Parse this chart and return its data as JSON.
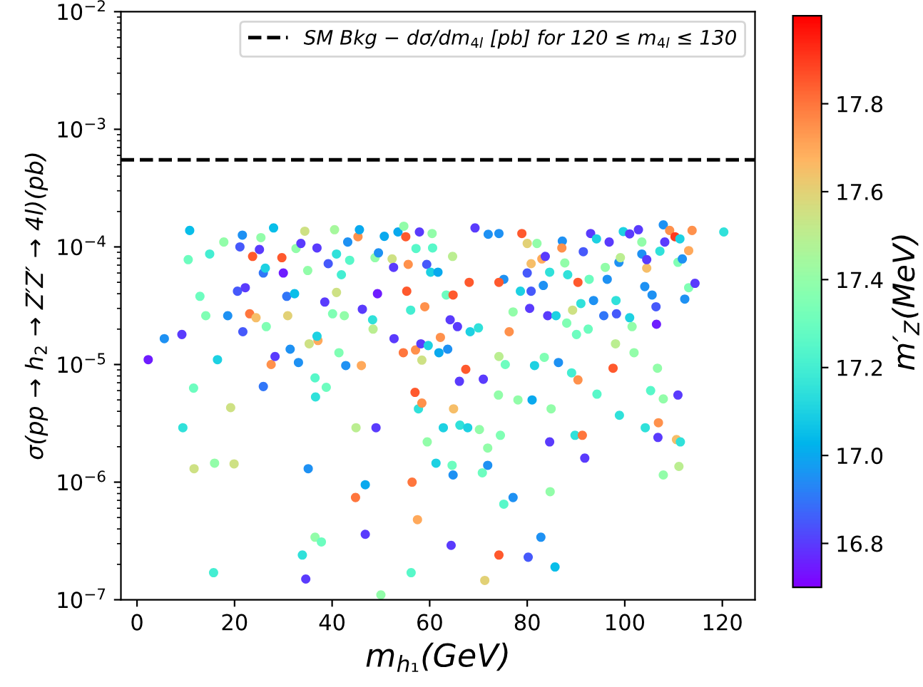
{
  "chart_data": {
    "type": "scatter",
    "xlabel": "m$_{h₁}$(GeV)",
    "ylabel": "σ(pp → h$_{2}$ → Z′Z′ → 4l)(pb)",
    "clabel": "m′$_{Z}$(MeV)",
    "log": "y",
    "xlim": [
      -3.3,
      126.7
    ],
    "xticks": [
      0,
      20,
      40,
      60,
      80,
      100,
      120
    ],
    "ylim": [
      1e-07,
      0.01
    ],
    "yticks": [
      {
        "value": 1e-07,
        "label": "10$^{−7}$"
      },
      {
        "value": 1e-06,
        "label": "10$^{−6}$"
      },
      {
        "value": 1e-05,
        "label": "10$^{−5}$"
      },
      {
        "value": 0.0001,
        "label": "10$^{−4}$"
      },
      {
        "value": 0.001,
        "label": "10$^{−3}$"
      },
      {
        "value": 0.01,
        "label": "10$^{−2}$"
      }
    ],
    "clim": [
      16.7,
      18.0
    ],
    "cticks": [
      16.8,
      {
        "value": 17,
        "label": "17.0"
      },
      17.2,
      17.4,
      17.6,
      17.8
    ],
    "marker": "circle",
    "grid": false,
    "legend": "top right",
    "ref_lines": [
      {
        "axis": "y",
        "value": 0.00055,
        "label": "SM Bkg − dσ/dm$_{4l}$ [pb] for 120 ≤ m$_{4l}$ ≤ 130",
        "color": "#000000",
        "line_style": "dashed"
      }
    ],
    "series": [
      {
        "x": [
          2.3,
          5.6,
          9.2,
          9.4,
          10.8,
          10.5,
          11.6,
          11.7,
          12.9,
          14.1,
          14.9,
          15.7,
          15.9,
          16.5,
          17.8,
          18.6,
          19.2,
          19.9,
          20.6,
          21.1,
          21.6,
          21.7,
          22.2,
          23.1,
          23.7,
          24.4,
          25.1,
          25.4,
          25.9,
          25.9,
          26.3,
          26.5,
          27.5,
          28.0,
          28.3,
          29.7,
          30.0,
          30.7,
          30.9,
          31.4,
          32.3,
          32.6,
          33.1,
          33.6,
          34.4,
          33.9,
          34.6,
          35.1,
          35.0,
          35.3,
          36.5,
          37.8,
          36.6,
          36.5,
          37.1,
          36.9,
          36.9,
          38.5,
          38.8,
          39.2,
          40.1,
          40.5,
          40.9,
          41.4,
          40.9,
          41.9,
          42.5,
          42.8,
          43.2,
          43.6,
          44.9,
          44.8,
          45.3,
          45.6,
          46.0,
          46.2,
          46.8,
          46.8,
          48.3,
          48.4,
          49.3,
          49.0,
          48.8,
          49.5,
          50.0,
          50.7,
          52.3,
          52.6,
          52.7,
          53.5,
          54.7,
          55.1,
          55.3,
          55.6,
          56.1,
          54.6,
          56.2,
          56.4,
          57.0,
          57.1,
          57.2,
          57.5,
          57.7,
          57.9,
          58.2,
          58.4,
          58.4,
          59.0,
          59.5,
          59.4,
          59.7,
          60.2,
          60.5,
          60.6,
          61.3,
          61.7,
          61.9,
          62.2,
          62.8,
          63.4,
          63.7,
          64.2,
          64.4,
          64.6,
          64.7,
          64.8,
          64.9,
          64.8,
          65.7,
          66.1,
          66.2,
          67.4,
          68.1,
          69.3,
          67.8,
          68.3,
          70.0,
          70.2,
          71.0,
          71.3,
          71.9,
          71.9,
          70.8,
          74.2,
          74.1,
          74.5,
          74.2,
          72.0,
          74.2,
          75.2,
          74.2,
          78.9,
          80.0,
          82.0,
          80.8,
          83.0,
          80.0,
          83.3,
          83.7,
          80.8,
          80.5,
          78.6,
          77.1,
          76.3,
          75.5,
          81.5,
          83.5,
          78.1,
          81.0,
          84.9,
          84.6,
          84.2,
          84.6,
          85.9,
          86.4,
          87.2,
          87.1,
          87.7,
          88.3,
          88.1,
          89.1,
          89.3,
          89.8,
          90.4,
          90.4,
          90.1,
          91.3,
          91.8,
          91.0,
          91.5,
          92.5,
          92.7,
          93.0,
          94.2,
          93.6,
          94.3,
          96.0,
          96.4,
          95.7,
          96.8,
          97.6,
          98.1,
          98.2,
          98.3,
          98.8,
          99.1,
          98.9,
          99.7,
          101.0,
          101.0,
          101.5,
          101.9,
          102.8,
          103.5,
          103.5,
          104.1,
          104.2,
          104.5,
          104.5,
          105.3,
          105.6,
          106.4,
          106.5,
          106.7,
          106.8,
          106.9,
          107.2,
          107.9,
          108.2,
          107.9,
          107.9,
          109.2,
          110.3,
          111.3,
          110.9,
          111.8,
          110.9,
          110.6,
          111.4,
          111.1,
          112.3,
          113.1,
          113.1,
          113.8,
          114.4,
          120.3,
          77.1,
          75.2,
          84.7,
          82.8,
          80.2,
          85.7
        ],
        "values": [
          1.1e-05,
          1.66e-05,
          1.8e-05,
          2.9e-06,
          0.000138,
          7.8e-05,
          6.3e-06,
          1.3e-06,
          3.8e-05,
          2.6e-05,
          8.7e-05,
          1.7e-07,
          1.45e-06,
          1.1e-05,
          0.00011,
          2.6e-05,
          4.3e-06,
          1.43e-06,
          4.2e-05,
          0.0001,
          0.000126,
          1.9e-05,
          4.5e-05,
          2.7e-05,
          8.3e-05,
          2.5e-05,
          9.5e-05,
          0.00012,
          6e-05,
          6.5e-06,
          6.6e-05,
          2.1e-05,
          1e-05,
          0.000145,
          1.17e-05,
          8.1e-05,
          6e-05,
          3.8e-05,
          2.6e-05,
          1.35e-05,
          4e-05,
          9.7e-05,
          1.04e-05,
          0.000107,
          0.000136,
          2.4e-07,
          1.5e-07,
          1.3e-06,
          6.3e-05,
          1.5e-05,
          3.4e-07,
          3.1e-07,
          5.3e-06,
          7.7e-06,
          1.6e-05,
          1.74e-05,
          9.8e-05,
          3.4e-05,
          6.4e-06,
          7.2e-05,
          2.7e-05,
          0.00014,
          4.1e-05,
          1.26e-05,
          8.7e-05,
          5.8e-05,
          2.6e-05,
          9.8e-06,
          0.00011,
          7.7e-05,
          2.9e-06,
          7.4e-07,
          0.000122,
          0.00014,
          9.8e-06,
          2.95e-05,
          9.5e-07,
          3.6e-07,
          2.4e-05,
          2e-05,
          4e-05,
          2.9e-06,
          8.1e-05,
          8.9e-05,
          1.1e-07,
          0.000123,
          7.9e-05,
          6.7e-05,
          1.66e-05,
          0.000134,
          0.00015,
          0.000122,
          4.2e-05,
          7.1e-05,
          2.9e-05,
          1.26e-05,
          1.7e-07,
          1e-06,
          5.8e-06,
          1.33e-05,
          9.7e-05,
          4.8e-07,
          4.2e-06,
          0.000134,
          1.5e-05,
          1.09e-05,
          4.7e-06,
          3.1e-05,
          2.2e-06,
          7.1e-05,
          1.45e-05,
          6.1e-05,
          0.00013,
          9.8e-05,
          1.45e-06,
          6.1e-05,
          1.26e-05,
          1.7e-05,
          2.9e-06,
          3.9e-05,
          1.35e-05,
          2.4e-05,
          2.9e-07,
          1.39e-06,
          8.3e-05,
          3.9e-05,
          4.2e-06,
          1.15e-06,
          2.1e-05,
          7.2e-06,
          3.05e-06,
          9.1e-06,
          5e-05,
          0.000145,
          2.9e-06,
          1.9e-05,
          2.05e-05,
          2.8e-06,
          7.5e-06,
          1.46e-07,
          1.95e-06,
          1.39e-06,
          1.2e-06,
          2.4e-07,
          5.5e-06,
          2.5e-06,
          1.17e-05,
          0.000128,
          0.00013,
          5.3e-05,
          5e-05,
          0.00013,
          0.000107,
          0.000107,
          7.2e-05,
          7.9e-05,
          6e-05,
          4.7e-05,
          8.3e-05,
          4.2e-05,
          3e-05,
          4.2e-05,
          2.8e-05,
          1.9e-05,
          1e-05,
          9.8e-06,
          1.15e-05,
          5e-06,
          5e-06,
          4.2e-06,
          2.2e-06,
          2.6e-05,
          6.1e-05,
          2.6e-05,
          1.04e-05,
          0.000112,
          9.8e-05,
          7.3e-05,
          5.8e-05,
          2.25e-05,
          8.5e-06,
          2.9e-05,
          2.5e-06,
          7.4e-06,
          5e-05,
          1.8e-05,
          2.5e-06,
          1.6e-06,
          3.3e-05,
          9.1e-05,
          2e-05,
          5.3e-05,
          0.00013,
          0.000117,
          3.5e-05,
          5.6e-06,
          6.7e-05,
          5.3e-05,
          2.6e-05,
          0.00011,
          9.3e-06,
          1.5e-05,
          3.5e-05,
          2.7e-05,
          7.4e-05,
          8.1e-05,
          3.7e-06,
          0.000135,
          0.000129,
          2.5e-05,
          2.1e-05,
          1.26e-05,
          0.00014,
          0.00011,
          8.7e-05,
          4.6e-05,
          2.9e-06,
          6.6e-05,
          7.8e-05,
          6e-06,
          3.9e-05,
          3.1e-05,
          2.2e-05,
          9.3e-06,
          2.4e-06,
          3.2e-06,
          9.2e-05,
          0.000154,
          0.00011,
          5.1e-06,
          1.15e-06,
          0.000138,
          0.000122,
          0.000117,
          7.4e-05,
          7.9e-05,
          5.5e-06,
          2.3e-06,
          2.2e-06,
          1.36e-06,
          3.6e-05,
          4.5e-05,
          9.3e-05,
          0.000138,
          4.9e-05,
          0.000134,
          7.4e-07,
          6.5e-07,
          8.3e-07,
          3.4e-07,
          2.3e-07,
          1.9e-07
        ],
        "cvalues": [
          16.75,
          16.95,
          16.8,
          17.15,
          17.05,
          17.3,
          17.3,
          17.55,
          17.3,
          17.35,
          17.2,
          17.2,
          17.4,
          17.1,
          17.4,
          16.95,
          17.55,
          17.55,
          16.85,
          16.85,
          16.95,
          16.85,
          16.8,
          17.8,
          17.85,
          17.65,
          16.8,
          17.4,
          16.9,
          16.9,
          17.1,
          17.35,
          17.75,
          17.05,
          16.8,
          17.85,
          16.75,
          16.9,
          17.6,
          16.95,
          17.05,
          17.4,
          16.95,
          16.8,
          17.55,
          17.15,
          16.8,
          16.95,
          17.4,
          17.55,
          17.4,
          17.3,
          17.15,
          17.25,
          17.7,
          17.1,
          16.8,
          16.8,
          17.3,
          16.85,
          17.35,
          17.45,
          17.55,
          17.35,
          17.15,
          17.2,
          17.4,
          16.95,
          16.95,
          17.25,
          17.5,
          17.8,
          17.75,
          17.0,
          17.7,
          16.8,
          17.0,
          16.8,
          17.15,
          17.5,
          16.75,
          16.8,
          17.4,
          16.95,
          17.4,
          17.0,
          17.55,
          16.8,
          16.8,
          17.0,
          17.4,
          17.85,
          17.85,
          17.75,
          17.2,
          17.8,
          17.25,
          17.8,
          17.85,
          17.75,
          17.25,
          17.7,
          17.15,
          16.8,
          16.8,
          17.55,
          17.75,
          17.75,
          17.4,
          16.85,
          17.1,
          17.1,
          17.4,
          17.25,
          17.1,
          17.0,
          17.0,
          17.75,
          17.1,
          17.3,
          16.95,
          16.8,
          16.8,
          17.3,
          17.5,
          17.85,
          17.65,
          16.95,
          16.8,
          16.8,
          17.15,
          17.85,
          17.85,
          16.8,
          17.1,
          17.1,
          17.15,
          17.4,
          16.8,
          17.6,
          17.4,
          16.95,
          17.3,
          17.85,
          17.4,
          17.35,
          17.5,
          16.95,
          16.95,
          16.95,
          17.85,
          17.85,
          17.6,
          17.4,
          17.65,
          17.7,
          16.85,
          16.95,
          16.8,
          16.85,
          16.8,
          17.1,
          17.4,
          17.75,
          17.3,
          17.1,
          17.35,
          17.4,
          17.0,
          17.4,
          16.8,
          16.8,
          17.15,
          17.1,
          16.95,
          16.95,
          17.75,
          17.4,
          17.15,
          17.35,
          17.2,
          17.55,
          17.15,
          17.75,
          17.85,
          17.3,
          17.8,
          16.8,
          17.15,
          16.85,
          17.3,
          17.3,
          16.8,
          17.1,
          16.95,
          17.25,
          17.4,
          16.95,
          16.9,
          16.8,
          17.85,
          17.5,
          17.15,
          16.85,
          16.95,
          17.5,
          17.15,
          17.1,
          16.8,
          17.1,
          17.4,
          17.4,
          16.8,
          17.4,
          16.95,
          16.95,
          17.15,
          17.65,
          16.8,
          17.25,
          16.95,
          16.85,
          16.75,
          17.4,
          16.8,
          17.75,
          17.15,
          16.95,
          16.8,
          17.4,
          17.4,
          17.75,
          17.9,
          17.1,
          17.35,
          16.95,
          16.8,
          17.65,
          17.15,
          17.5,
          16.95,
          17.35,
          17.7,
          17.75,
          16.8,
          17.15,
          16.95,
          17.25,
          17.4,
          16.95,
          16.85,
          17.05
        ]
      }
    ]
  }
}
